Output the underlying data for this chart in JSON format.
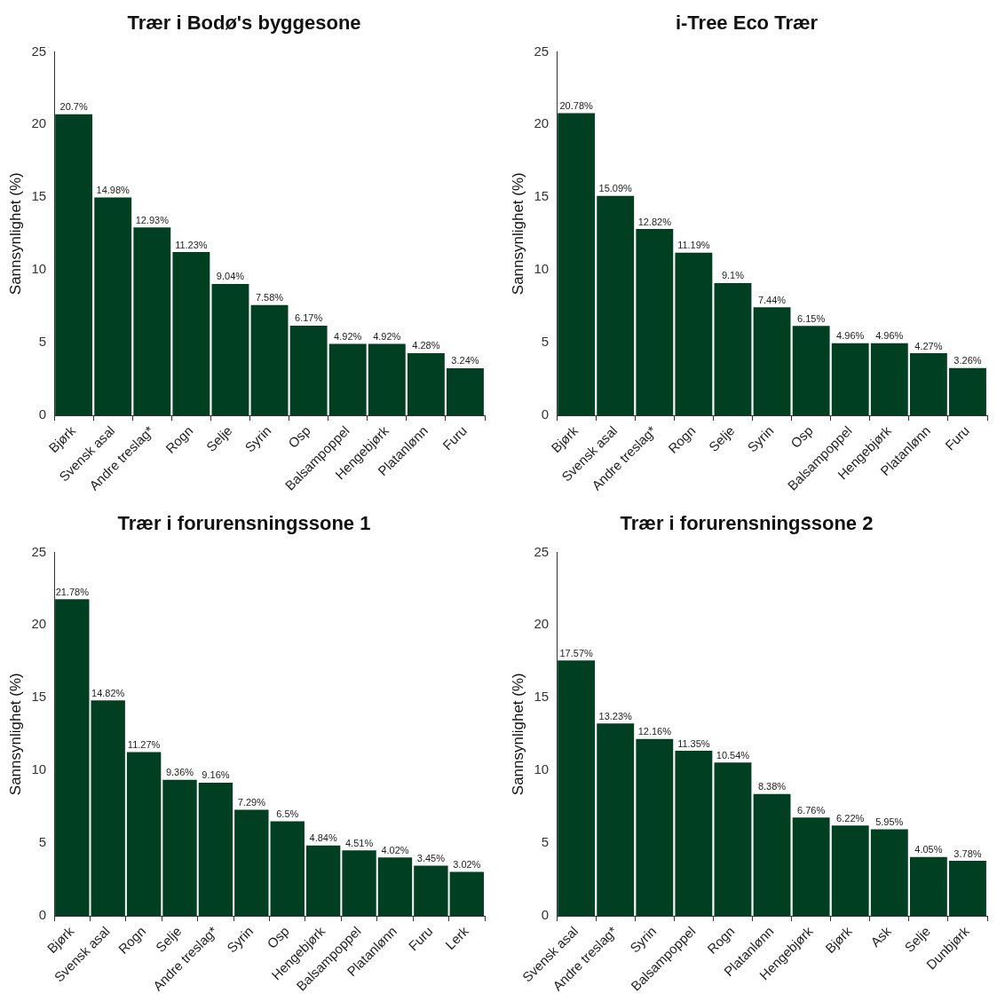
{
  "chart_data": [
    {
      "type": "bar",
      "title": "Trær i Bodø's byggesone",
      "ylabel": "Sannsynlighet (%)",
      "categories": [
        "Bjørk",
        "Svensk asal",
        "Andre treslag*",
        "Rogn",
        "Selje",
        "Syrin",
        "Osp",
        "Balsampoppel",
        "Hengebjørk",
        "Platanlønn",
        "Furu"
      ],
      "values": [
        20.7,
        14.98,
        12.93,
        11.23,
        9.04,
        7.58,
        6.17,
        4.92,
        4.92,
        4.28,
        3.24
      ],
      "value_labels": [
        "20.7%",
        "14.98%",
        "12.93%",
        "11.23%",
        "9.04%",
        "7.58%",
        "6.17%",
        "4.92%",
        "4.92%",
        "4.28%",
        "3.24%"
      ],
      "color": "#013f23",
      "ylim": [
        0,
        25
      ],
      "yticks": [
        0,
        5,
        10,
        15,
        20,
        25
      ],
      "grid": false
    },
    {
      "type": "bar",
      "title": "i-Tree Eco Trær",
      "ylabel": "Sannsynlighet (%)",
      "categories": [
        "Bjørk",
        "Svensk asal",
        "Andre treslag*",
        "Rogn",
        "Selje",
        "Syrin",
        "Osp",
        "Balsampoppel",
        "Hengebjørk",
        "Platanlønn",
        "Furu"
      ],
      "values": [
        20.78,
        15.09,
        12.82,
        11.19,
        9.1,
        7.44,
        6.15,
        4.96,
        4.96,
        4.27,
        3.26
      ],
      "value_labels": [
        "20.78%",
        "15.09%",
        "12.82%",
        "11.19%",
        "9.1%",
        "7.44%",
        "6.15%",
        "4.96%",
        "4.96%",
        "4.27%",
        "3.26%"
      ],
      "color": "#013f23",
      "ylim": [
        0,
        25
      ],
      "yticks": [
        0,
        5,
        10,
        15,
        20,
        25
      ],
      "grid": false
    },
    {
      "type": "bar",
      "title": "Trær i forurensningssone 1",
      "ylabel": "Sannsynlighet (%)",
      "categories": [
        "Bjørk",
        "Svensk asal",
        "Rogn",
        "Selje",
        "Andre treslag*",
        "Syrin",
        "Osp",
        "Hengebjørk",
        "Balsampoppel",
        "Platanlønn",
        "Furu",
        "Lerk"
      ],
      "values": [
        21.78,
        14.82,
        11.27,
        9.36,
        9.16,
        7.29,
        6.5,
        4.84,
        4.51,
        4.02,
        3.45,
        3.02
      ],
      "value_labels": [
        "21.78%",
        "14.82%",
        "11.27%",
        "9.36%",
        "9.16%",
        "7.29%",
        "6.5%",
        "4.84%",
        "4.51%",
        "4.02%",
        "3.45%",
        "3.02%"
      ],
      "color": "#013f23",
      "ylim": [
        0,
        25
      ],
      "yticks": [
        0,
        5,
        10,
        15,
        20,
        25
      ],
      "grid": false
    },
    {
      "type": "bar",
      "title": "Trær i forurensningssone 2",
      "ylabel": "Sannsynlighet (%)",
      "categories": [
        "Svensk asal",
        "Andre treslag*",
        "Syrin",
        "Balsampoppel",
        "Rogn",
        "Platanlønn",
        "Hengebjørk",
        "Bjørk",
        "Ask",
        "Selje",
        "Dunbjørk"
      ],
      "values": [
        17.57,
        13.23,
        12.16,
        11.35,
        10.54,
        8.38,
        6.76,
        6.22,
        5.95,
        4.05,
        3.78
      ],
      "value_labels": [
        "17.57%",
        "13.23%",
        "12.16%",
        "11.35%",
        "10.54%",
        "8.38%",
        "6.76%",
        "6.22%",
        "5.95%",
        "4.05%",
        "3.78%"
      ],
      "color": "#013f23",
      "ylim": [
        0,
        25
      ],
      "yticks": [
        0,
        5,
        10,
        15,
        20,
        25
      ],
      "grid": false
    }
  ]
}
